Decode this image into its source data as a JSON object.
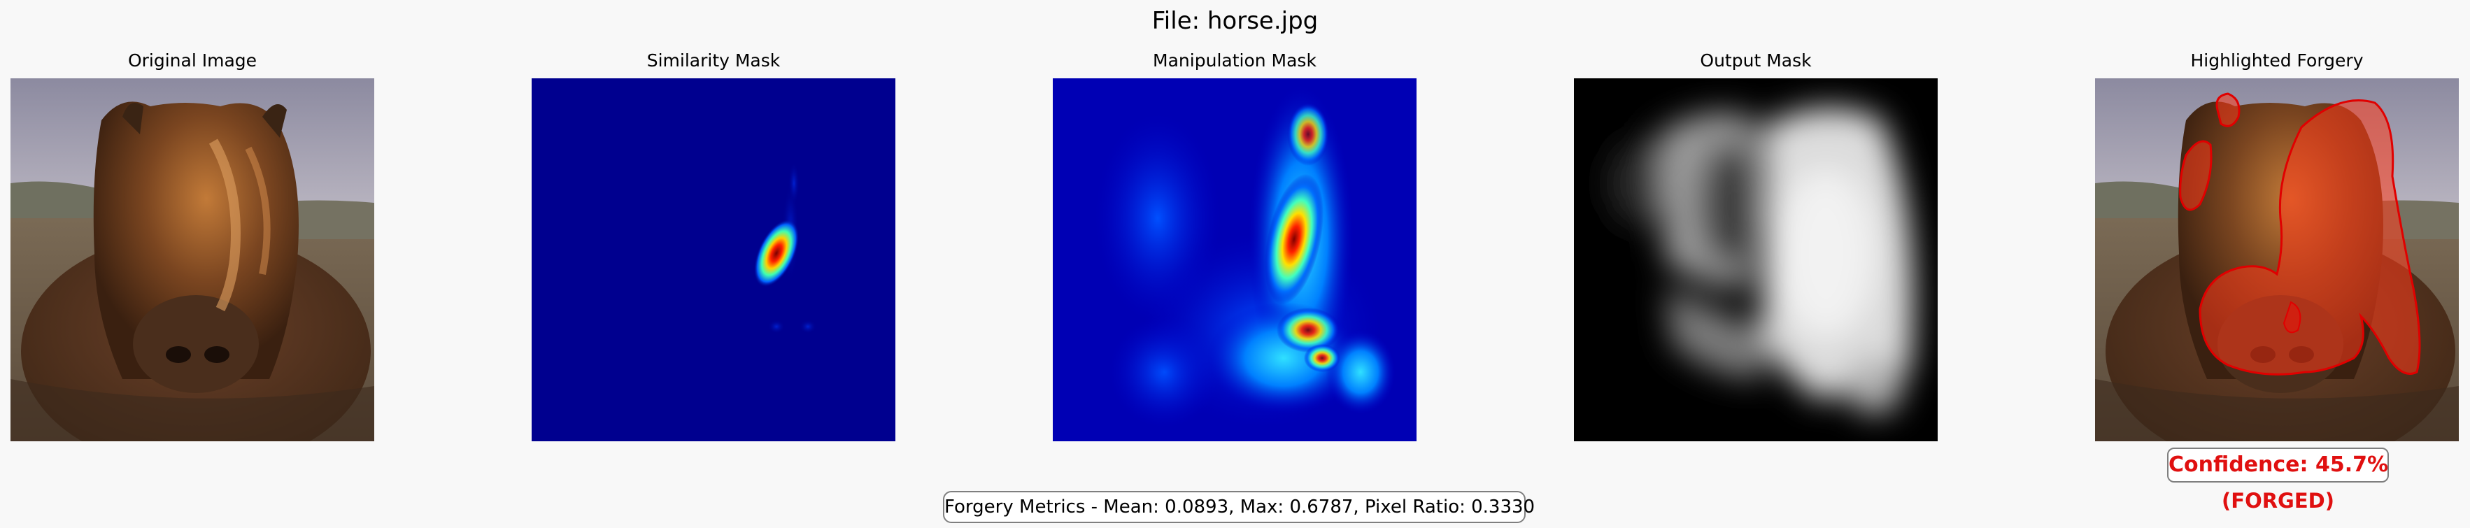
{
  "figure": {
    "title": "File: horse.jpg"
  },
  "panels": [
    {
      "title": "Original Image",
      "icon": "horse-photo"
    },
    {
      "title": "Similarity Mask",
      "icon": "jet-heatmap"
    },
    {
      "title": "Manipulation Mask",
      "icon": "jet-heatmap"
    },
    {
      "title": "Output Mask",
      "icon": "grayscale-mask"
    },
    {
      "title": "Highlighted Forgery",
      "icon": "horse-photo-red-overlay"
    }
  ],
  "metrics": {
    "text": "Forgery Metrics - Mean: 0.0893, Max: 0.6787, Pixel Ratio: 0.3330"
  },
  "result": {
    "confidence": "Confidence: 45.7%",
    "verdict": "(FORGED)",
    "color": "#e01010"
  },
  "colors": {
    "background": "#f8f8f8",
    "jet_low": "#00008f",
    "jet_high": "#ff0000"
  }
}
